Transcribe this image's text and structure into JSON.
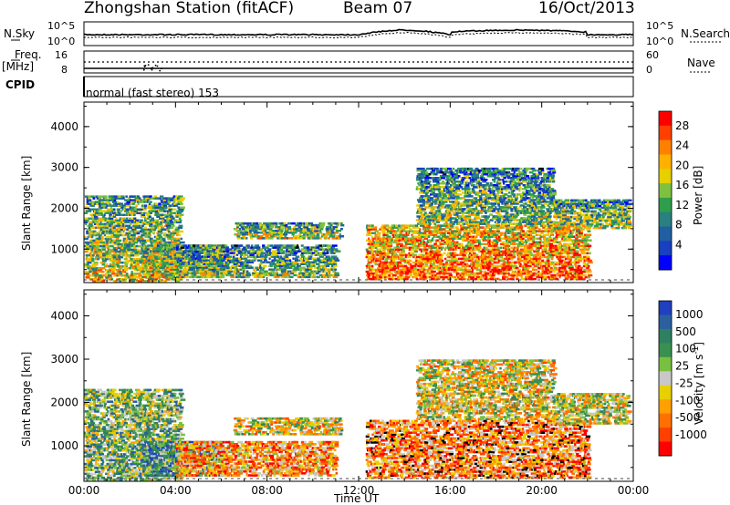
{
  "header": {
    "station": "Zhongshan Station (fitACF)",
    "beam": "Beam 07",
    "date": "16/Oct/2013"
  },
  "panels": {
    "nsky": {
      "label": "N.Sky",
      "top_tick": "10^5",
      "bottom_tick": "10^0",
      "right_label": "N.Search",
      "right_top_tick": "10^5",
      "right_bottom_tick": "10^0"
    },
    "freq": {
      "label": "Freq.",
      "units": "[MHz]",
      "top_tick": "16",
      "bottom_tick": "8",
      "right_label": "Nave",
      "right_top_tick": "60",
      "right_bottom_tick": "0"
    },
    "cpid": {
      "label": "CPID",
      "mode": "normal (fast stereo) 153"
    }
  },
  "chart_data": [
    {
      "type": "heatmap",
      "title": "",
      "ylabel": "Slant Range [km]",
      "xlabel": "",
      "ylim": [
        180,
        4600
      ],
      "xlim": [
        0,
        24
      ],
      "yticks": [
        "4000",
        "3000",
        "2000",
        "1000"
      ],
      "colorbar": {
        "label": "Power [dB]",
        "ticks": [
          "28",
          "24",
          "20",
          "16",
          "12",
          "8",
          "4"
        ],
        "colors": [
          "#ff0000",
          "#ff4000",
          "#ff8000",
          "#ffb000",
          "#e6d000",
          "#80c040",
          "#2e9e4a",
          "#2a8080",
          "#2060a0",
          "#1840c0",
          "#0000ff"
        ]
      },
      "regions": [
        {
          "t0": 0.0,
          "t1": 4.2,
          "r0": 200,
          "r1": 2300,
          "level": 0.45
        },
        {
          "t0": 2.5,
          "t1": 6.0,
          "r0": 300,
          "r1": 1100,
          "level": 0.5
        },
        {
          "t0": 6.5,
          "t1": 11.2,
          "r0": 1250,
          "r1": 1650,
          "level": 0.4
        },
        {
          "t0": 4.0,
          "t1": 11.0,
          "r0": 300,
          "r1": 1100,
          "level": 0.35
        },
        {
          "t0": 12.3,
          "t1": 22.0,
          "r0": 250,
          "r1": 1600,
          "level": 0.7
        },
        {
          "t0": 14.5,
          "t1": 20.5,
          "r0": 1600,
          "r1": 3000,
          "level": 0.35
        },
        {
          "t0": 20.5,
          "t1": 23.8,
          "r0": 1500,
          "r1": 2200,
          "level": 0.4
        }
      ]
    },
    {
      "type": "heatmap",
      "title": "",
      "ylabel": "Slant Range [km]",
      "xlabel": "Time UT",
      "ylim": [
        180,
        4600
      ],
      "xlim": [
        0,
        24
      ],
      "yticks": [
        "4000",
        "3000",
        "2000",
        "1000"
      ],
      "xticks": [
        "00:00",
        "04:00",
        "08:00",
        "12:00",
        "16:00",
        "20:00",
        "00:00"
      ],
      "colorbar": {
        "label": "Velocity [m s",
        "label_sup": "-1",
        "label_end": "]",
        "ticks": [
          "1000",
          "500",
          "100",
          "25",
          "-25",
          "-100",
          "-500",
          "-1000"
        ],
        "colors": [
          "#2040c0",
          "#2a60a0",
          "#2e8060",
          "#3a9050",
          "#7ac040",
          "#c8c8c8",
          "#e8d000",
          "#ffa000",
          "#ff7000",
          "#ff4000",
          "#ff0000"
        ]
      },
      "regions": [
        {
          "t0": 0.0,
          "t1": 4.2,
          "r0": 200,
          "r1": 2300,
          "level": 0.6
        },
        {
          "t0": 2.5,
          "t1": 6.0,
          "r0": 300,
          "r1": 1100,
          "level": 0.75
        },
        {
          "t0": 6.5,
          "t1": 11.2,
          "r0": 1250,
          "r1": 1650,
          "level": 0.45
        },
        {
          "t0": 4.0,
          "t1": 11.0,
          "r0": 300,
          "r1": 1100,
          "level": 0.3
        },
        {
          "t0": 12.3,
          "t1": 22.0,
          "r0": 250,
          "r1": 1600,
          "level": 0.25
        },
        {
          "t0": 14.5,
          "t1": 20.5,
          "r0": 1600,
          "r1": 3000,
          "level": 0.45
        },
        {
          "t0": 20.5,
          "t1": 23.8,
          "r0": 1500,
          "r1": 2200,
          "level": 0.5
        }
      ]
    }
  ]
}
